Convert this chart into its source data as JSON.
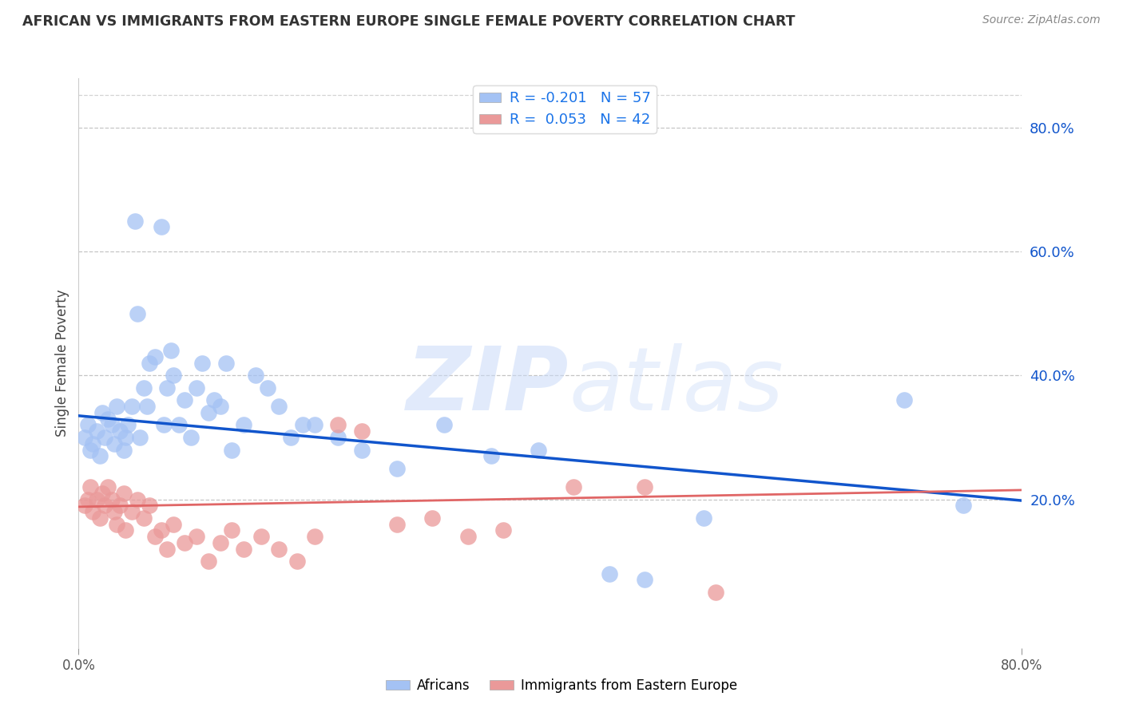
{
  "title": "AFRICAN VS IMMIGRANTS FROM EASTERN EUROPE SINGLE FEMALE POVERTY CORRELATION CHART",
  "source": "Source: ZipAtlas.com",
  "ylabel": "Single Female Poverty",
  "right_yticks": [
    0.2,
    0.4,
    0.6,
    0.8
  ],
  "right_yticklabels": [
    "20.0%",
    "40.0%",
    "60.0%",
    "80.0%"
  ],
  "xlim": [
    0.0,
    0.8
  ],
  "ylim": [
    -0.04,
    0.88
  ],
  "africans_R": -0.201,
  "africans_N": 57,
  "eastern_europe_R": 0.053,
  "eastern_europe_N": 42,
  "african_color": "#a4c2f4",
  "eastern_europe_color": "#ea9999",
  "african_trend_color": "#1155cc",
  "eastern_europe_trend_color": "#e06666",
  "grid_color": "#b7b7b7",
  "africans_x": [
    0.005,
    0.008,
    0.01,
    0.012,
    0.015,
    0.018,
    0.02,
    0.022,
    0.025,
    0.028,
    0.03,
    0.032,
    0.035,
    0.038,
    0.04,
    0.042,
    0.045,
    0.048,
    0.05,
    0.052,
    0.055,
    0.058,
    0.06,
    0.065,
    0.07,
    0.072,
    0.075,
    0.078,
    0.08,
    0.085,
    0.09,
    0.095,
    0.1,
    0.105,
    0.11,
    0.115,
    0.12,
    0.125,
    0.13,
    0.14,
    0.15,
    0.16,
    0.17,
    0.18,
    0.19,
    0.2,
    0.22,
    0.24,
    0.27,
    0.31,
    0.35,
    0.39,
    0.45,
    0.48,
    0.53,
    0.7,
    0.75
  ],
  "africans_y": [
    0.3,
    0.32,
    0.28,
    0.29,
    0.31,
    0.27,
    0.34,
    0.3,
    0.33,
    0.32,
    0.29,
    0.35,
    0.31,
    0.28,
    0.3,
    0.32,
    0.35,
    0.65,
    0.5,
    0.3,
    0.38,
    0.35,
    0.42,
    0.43,
    0.64,
    0.32,
    0.38,
    0.44,
    0.4,
    0.32,
    0.36,
    0.3,
    0.38,
    0.42,
    0.34,
    0.36,
    0.35,
    0.42,
    0.28,
    0.32,
    0.4,
    0.38,
    0.35,
    0.3,
    0.32,
    0.32,
    0.3,
    0.28,
    0.25,
    0.32,
    0.27,
    0.28,
    0.08,
    0.07,
    0.17,
    0.36,
    0.19
  ],
  "eastern_europe_x": [
    0.005,
    0.008,
    0.01,
    0.012,
    0.015,
    0.018,
    0.02,
    0.022,
    0.025,
    0.028,
    0.03,
    0.032,
    0.035,
    0.038,
    0.04,
    0.045,
    0.05,
    0.055,
    0.06,
    0.065,
    0.07,
    0.075,
    0.08,
    0.09,
    0.1,
    0.11,
    0.12,
    0.13,
    0.14,
    0.155,
    0.17,
    0.185,
    0.2,
    0.22,
    0.24,
    0.27,
    0.3,
    0.33,
    0.36,
    0.42,
    0.48,
    0.54
  ],
  "eastern_europe_y": [
    0.19,
    0.2,
    0.22,
    0.18,
    0.2,
    0.17,
    0.21,
    0.19,
    0.22,
    0.2,
    0.18,
    0.16,
    0.19,
    0.21,
    0.15,
    0.18,
    0.2,
    0.17,
    0.19,
    0.14,
    0.15,
    0.12,
    0.16,
    0.13,
    0.14,
    0.1,
    0.13,
    0.15,
    0.12,
    0.14,
    0.12,
    0.1,
    0.14,
    0.32,
    0.31,
    0.16,
    0.17,
    0.14,
    0.15,
    0.22,
    0.22,
    0.05
  ],
  "african_trend_x0": 0.0,
  "african_trend_y0": 0.335,
  "african_trend_x1": 0.8,
  "african_trend_y1": 0.198,
  "eastern_europe_trend_x0": 0.0,
  "eastern_europe_trend_y0": 0.188,
  "eastern_europe_trend_x1": 0.8,
  "eastern_europe_trend_y1": 0.215
}
